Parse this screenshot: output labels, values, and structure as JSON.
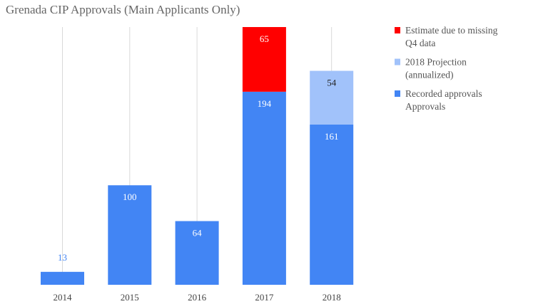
{
  "chart_data": {
    "type": "bar",
    "stacked": true,
    "title": "Grenada CIP Approvals (Main Applicants Only)",
    "xlabel": "",
    "ylabel": "",
    "categories": [
      "2014",
      "2015",
      "2016",
      "2017",
      "2018"
    ],
    "ylim": [
      0,
      260
    ],
    "grid": "vertical",
    "legend_position": "right",
    "series": [
      {
        "name": "Recorded approvals Approvals",
        "legend_lines": [
          "Recorded approvals",
          "Approvals"
        ],
        "color": "#4285f4",
        "values": [
          13,
          100,
          64,
          194,
          161
        ],
        "label_colors": [
          "#4285f4",
          "#ffffff",
          "#ffffff",
          "#ffffff",
          "#ffffff"
        ]
      },
      {
        "name": "Estimate due to missing Q4 data",
        "legend_lines": [
          "Estimate due to missing",
          "Q4 data"
        ],
        "color": "#ff0000",
        "values": [
          0,
          0,
          0,
          65,
          0
        ],
        "label_colors": [
          "#ffffff",
          "#ffffff",
          "#ffffff",
          "#ffffff",
          "#ffffff"
        ]
      },
      {
        "name": "2018 Projection (annualized)",
        "legend_lines": [
          "2018 Projection",
          "(annualized)"
        ],
        "color": "#a1c2fa",
        "values": [
          0,
          0,
          0,
          0,
          54
        ],
        "label_colors": [
          "#222222",
          "#222222",
          "#222222",
          "#222222",
          "#222222"
        ]
      }
    ],
    "legend_order": [
      1,
      2,
      0
    ]
  }
}
